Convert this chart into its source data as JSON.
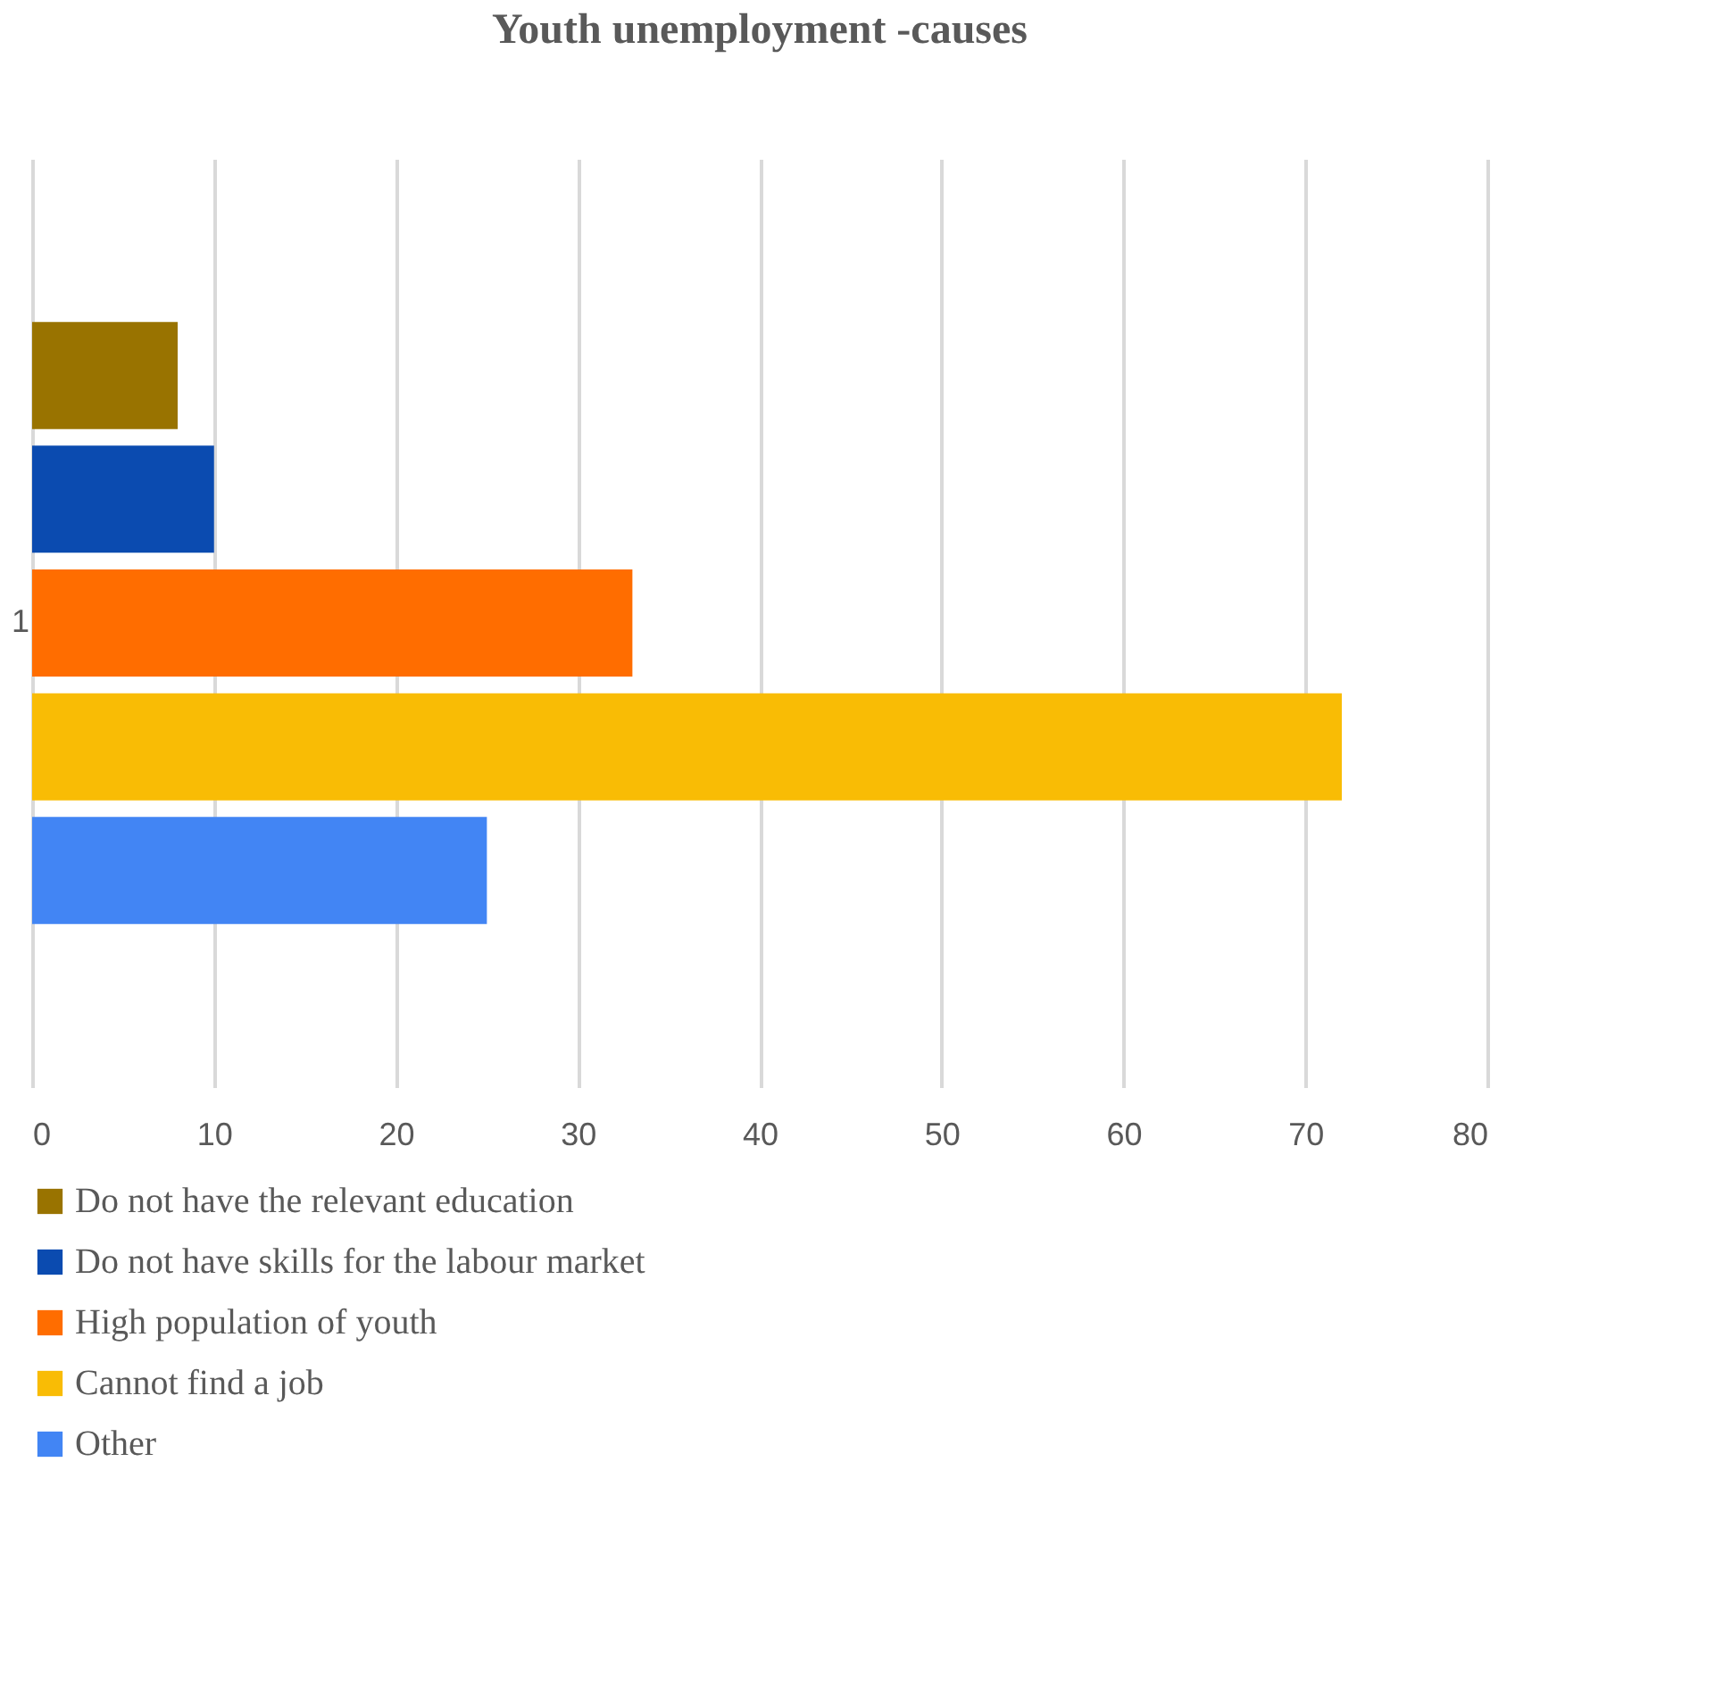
{
  "chart_data": {
    "type": "bar",
    "orientation": "horizontal",
    "title": "Youth unemployment -causes",
    "categories": [
      "1"
    ],
    "series": [
      {
        "name": "Do not have the relevant education",
        "color": "#997300",
        "values": [
          8
        ]
      },
      {
        "name": "Do not have skills for the labour market",
        "color": "#0b4bb0",
        "values": [
          10
        ]
      },
      {
        "name": "High population of youth",
        "color": "#ff6d00",
        "values": [
          33
        ]
      },
      {
        "name": "Cannot find a job",
        "color": "#f9bc05",
        "values": [
          72
        ]
      },
      {
        "name": "Other",
        "color": "#4285f4",
        "values": [
          25
        ]
      }
    ],
    "xlim": [
      0,
      80
    ],
    "xticks": [
      0,
      10,
      20,
      30,
      40,
      50,
      60,
      70,
      80
    ],
    "grid": "x",
    "legend": "bottom"
  }
}
